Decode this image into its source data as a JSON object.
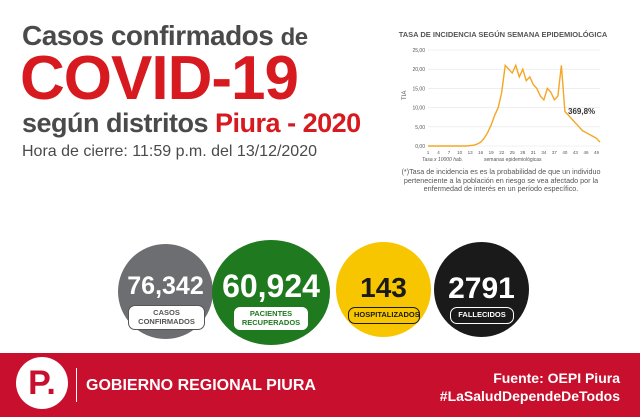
{
  "header": {
    "title_line1": "Casos confirmados",
    "title_line1_de": "de",
    "title_line2": "COVID-19",
    "title_line3_a": "según distritos",
    "title_line3_b": "Piura - 2020",
    "closing_time": "Hora de cierre: 11:59 p.m. del 13/12/2020"
  },
  "chart_data": {
    "type": "line",
    "title": "TASA DE INCIDENCIA SEGÚN SEMANA EPIDEMIOLÓGICA",
    "xlabel": "semanas epidemiológicas",
    "ylabel": "TIA",
    "note": "Tasa x 10000 hab.",
    "annotation": "369,8%",
    "ylim": [
      0,
      25
    ],
    "yticks": [
      "0,00",
      "5,00",
      "10,00",
      "15,00",
      "20,00",
      "25,00"
    ],
    "xticks": [
      "1",
      "4",
      "7",
      "10",
      "13",
      "16",
      "19",
      "22",
      "25",
      "28",
      "31",
      "34",
      "37",
      "40",
      "43",
      "46",
      "49"
    ],
    "color": "#f5a623",
    "x": [
      1,
      2,
      3,
      4,
      5,
      6,
      7,
      8,
      9,
      10,
      11,
      12,
      13,
      14,
      15,
      16,
      17,
      18,
      19,
      20,
      21,
      22,
      23,
      24,
      25,
      26,
      27,
      28,
      29,
      30,
      31,
      32,
      33,
      34,
      35,
      36,
      37,
      38,
      39,
      40,
      41,
      42,
      43,
      44,
      45,
      46,
      47,
      48,
      49,
      50
    ],
    "values": [
      0,
      0,
      0,
      0,
      0,
      0,
      0,
      0,
      0,
      0,
      0,
      0,
      0.1,
      0.2,
      0.5,
      1,
      2,
      3.5,
      5.5,
      8,
      10,
      14,
      21,
      20,
      19,
      21,
      18,
      20,
      17,
      18,
      16,
      15,
      13,
      12,
      15,
      14,
      12,
      13,
      21,
      9,
      8,
      7,
      6,
      5,
      4,
      3.5,
      3,
      2.5,
      2,
      1
    ]
  },
  "footnote": "(*)Tasa de incidencia es es la probabilidad de que un individuo perteneciente a la población en riesgo se vea afectado por la enfermedad de interés en un período específico.",
  "stats": [
    {
      "value": "76,342",
      "label_line1": "CASOS",
      "label_line2": "CONFIRMADOS",
      "color": "#6d6e71"
    },
    {
      "value": "60,924",
      "label_line1": "PACIENTES",
      "label_line2": "RECUPERADOS",
      "color": "#1f7a1f"
    },
    {
      "value": "143",
      "label_line1": "HOSPITALIZADOS",
      "label_line2": "",
      "color": "#f7c600"
    },
    {
      "value": "2791",
      "label_line1": "FALLECIDOS",
      "label_line2": "",
      "color": "#1a1a1a"
    }
  ],
  "footer": {
    "logo_letter": "P.",
    "org": "GOBIERNO REGIONAL PIURA",
    "source": "Fuente: OEPI Piura",
    "hashtag": "#LaSaludDependeDeTodos"
  }
}
